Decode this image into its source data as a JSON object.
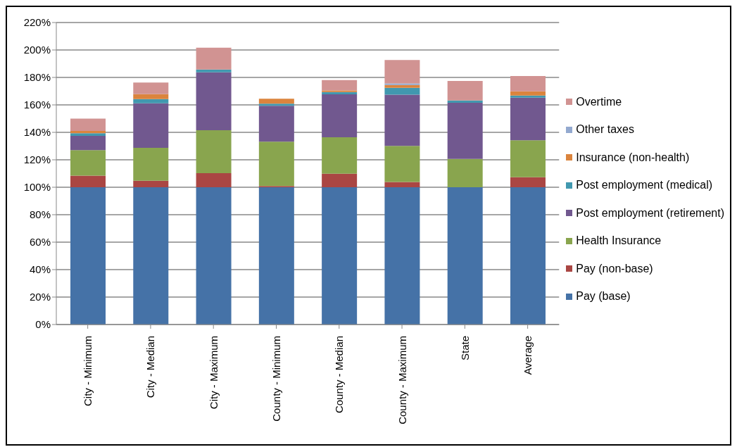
{
  "chart_data": {
    "type": "bar",
    "stacked": true,
    "categories": [
      "City - Minimum",
      "City - Median",
      "City - Maximum",
      "County - Minimum",
      "County - Median",
      "County - Maximum",
      "State",
      "Average"
    ],
    "series": [
      {
        "name": "Pay (base)",
        "color": "#4572a7",
        "values": [
          100,
          100,
          100,
          100,
          100,
          100,
          100,
          100
        ]
      },
      {
        "name": "Pay (non-base)",
        "color": "#aa4643",
        "values": [
          8.5,
          4.8,
          10.3,
          0.9,
          9.9,
          3.9,
          0,
          7.3
        ]
      },
      {
        "name": "Health Insurance",
        "color": "#89a54e",
        "values": [
          18.5,
          23.9,
          31.2,
          32.3,
          26.5,
          26.2,
          20.7,
          26.9
        ]
      },
      {
        "name": "Post employment (retirement)",
        "color": "#71588f",
        "values": [
          10.5,
          32.5,
          42.2,
          26.1,
          31.3,
          37.4,
          40.9,
          31.1
        ]
      },
      {
        "name": "Post employment (medical)",
        "color": "#4198af",
        "values": [
          1.8,
          3,
          2.1,
          1.6,
          1.7,
          5,
          1.6,
          1.5
        ]
      },
      {
        "name": "Insurance (non-health)",
        "color": "#db843d",
        "values": [
          1.7,
          3.6,
          0,
          3.6,
          1.1,
          2,
          0,
          3.1
        ]
      },
      {
        "name": "Other taxes",
        "color": "#93a9cf",
        "values": [
          0,
          0,
          0,
          0,
          0,
          1.2,
          0,
          0
        ]
      },
      {
        "name": "Overtime",
        "color": "#d19392",
        "values": [
          9,
          8.5,
          15.9,
          0,
          7.6,
          17,
          14.2,
          11.1
        ]
      }
    ],
    "ylim": [
      0,
      220
    ],
    "yticks": [
      {
        "value": 0,
        "label": "0%"
      },
      {
        "value": 20,
        "label": "20%"
      },
      {
        "value": 40,
        "label": "40%"
      },
      {
        "value": 60,
        "label": "60%"
      },
      {
        "value": 80,
        "label": "80%"
      },
      {
        "value": 100,
        "label": "100%"
      },
      {
        "value": 120,
        "label": "120%"
      },
      {
        "value": 140,
        "label": "140%"
      },
      {
        "value": 160,
        "label": "160%"
      },
      {
        "value": 180,
        "label": "180%"
      },
      {
        "value": 200,
        "label": "200%"
      },
      {
        "value": 220,
        "label": "220%"
      }
    ],
    "grid": "y",
    "legend": "right"
  }
}
